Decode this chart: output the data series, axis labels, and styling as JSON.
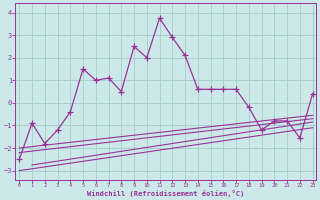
{
  "xlabel": "Windchill (Refroidissement éolien,°C)",
  "background_color": "#cce8e8",
  "grid_color": "#aad0d0",
  "line_color": "#993399",
  "x_ticks": [
    0,
    1,
    2,
    3,
    4,
    5,
    6,
    7,
    8,
    9,
    10,
    11,
    12,
    13,
    14,
    15,
    16,
    17,
    18,
    19,
    20,
    21,
    22,
    23
  ],
  "y_ticks": [
    -3,
    -2,
    -1,
    0,
    1,
    2,
    3,
    4
  ],
  "ylim": [
    -3.4,
    4.4
  ],
  "xlim": [
    -0.3,
    23.3
  ],
  "main_x": [
    0,
    1,
    2,
    3,
    4,
    5,
    6,
    7,
    8,
    9,
    10,
    11,
    12,
    13,
    14,
    15,
    16,
    17,
    18,
    19,
    20,
    21,
    22,
    23
  ],
  "main_y": [
    -2.5,
    -0.9,
    -1.8,
    -1.2,
    -0.4,
    1.5,
    1.0,
    1.1,
    0.5,
    2.5,
    2.0,
    3.75,
    2.9,
    2.1,
    0.6,
    0.6,
    0.6,
    0.6,
    -0.2,
    -1.2,
    -0.8,
    -0.8,
    -1.55,
    0.4
  ],
  "diag_lines": [
    {
      "x": [
        0,
        23
      ],
      "y": [
        -2.0,
        -0.55
      ]
    },
    {
      "x": [
        0,
        23
      ],
      "y": [
        -2.2,
        -0.7
      ]
    },
    {
      "x": [
        1,
        23
      ],
      "y": [
        -2.75,
        -0.85
      ]
    },
    {
      "x": [
        0,
        23
      ],
      "y": [
        -3.0,
        -1.1
      ]
    }
  ]
}
